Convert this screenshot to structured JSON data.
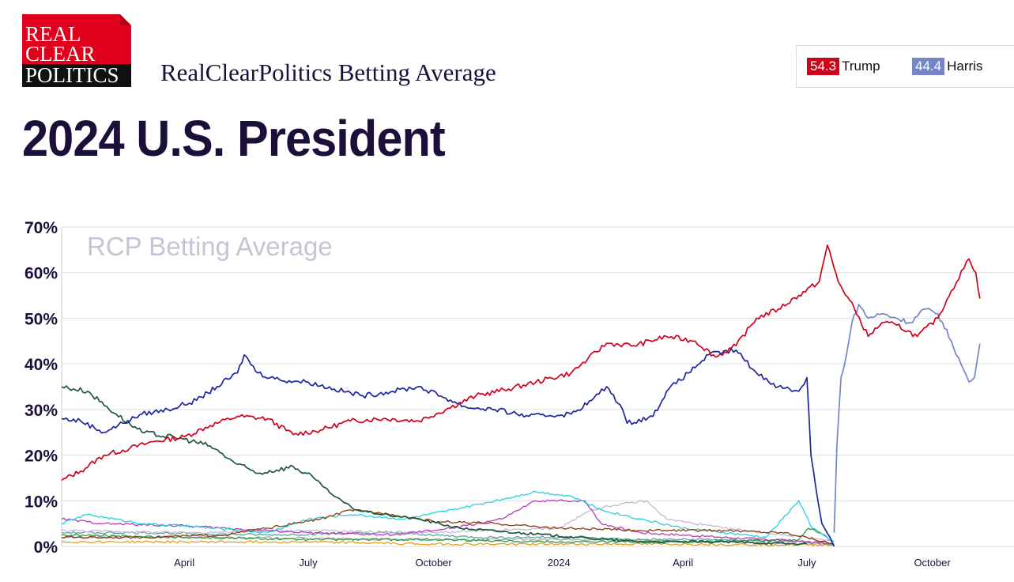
{
  "header": {
    "logo_line1": "REAL",
    "logo_line2": "CLEAR",
    "logo_line3": "POLITICS",
    "subtitle": "RealClearPolitics Betting Average",
    "title": "2024 U.S. President"
  },
  "legend": {
    "items": [
      {
        "value": "54.3",
        "name": "Trump",
        "color": "#d0021b"
      },
      {
        "value": "44.4",
        "name": "Harris",
        "color": "#7585c9"
      }
    ]
  },
  "chart_data": {
    "type": "line",
    "watermark": "RCP Betting Average",
    "y_ticks": [
      "0%",
      "10%",
      "20%",
      "30%",
      "40%",
      "50%",
      "60%",
      "70%"
    ],
    "x_ticks": [
      "April",
      "July",
      "October",
      "2024",
      "April",
      "July",
      "October"
    ],
    "ylim": [
      0,
      70
    ],
    "x_start": "2023-01-01",
    "x_end": "2024-11-30",
    "x_tick_dates": [
      "2023-04-01",
      "2023-07-01",
      "2023-10-01",
      "2024-01-01",
      "2024-04-01",
      "2024-07-01",
      "2024-10-01"
    ],
    "grid": true,
    "series": [
      {
        "name": "Trump",
        "color": "#d0021b",
        "points": [
          [
            "2023-01-01",
            14.5
          ],
          [
            "2023-01-15",
            16.5
          ],
          [
            "2023-02-01",
            20
          ],
          [
            "2023-02-20",
            21.5
          ],
          [
            "2023-03-10",
            23
          ],
          [
            "2023-04-01",
            24
          ],
          [
            "2023-04-20",
            26.5
          ],
          [
            "2023-05-10",
            28.5
          ],
          [
            "2023-06-01",
            28
          ],
          [
            "2023-06-20",
            24.5
          ],
          [
            "2023-07-10",
            25.5
          ],
          [
            "2023-08-01",
            27.5
          ],
          [
            "2023-08-25",
            28
          ],
          [
            "2023-09-20",
            27.5
          ],
          [
            "2023-10-10",
            30
          ],
          [
            "2023-11-01",
            33
          ],
          [
            "2023-11-25",
            34.5
          ],
          [
            "2023-12-15",
            36
          ],
          [
            "2024-01-10",
            38
          ],
          [
            "2024-01-22",
            41
          ],
          [
            "2024-02-05",
            44.5
          ],
          [
            "2024-02-25",
            44
          ],
          [
            "2024-03-20",
            46
          ],
          [
            "2024-04-10",
            45
          ],
          [
            "2024-04-25",
            41.5
          ],
          [
            "2024-05-10",
            44
          ],
          [
            "2024-05-25",
            50
          ],
          [
            "2024-06-10",
            52
          ],
          [
            "2024-06-25",
            55
          ],
          [
            "2024-07-10",
            58
          ],
          [
            "2024-07-16",
            66
          ],
          [
            "2024-07-24",
            58
          ],
          [
            "2024-08-05",
            52
          ],
          [
            "2024-08-15",
            46
          ],
          [
            "2024-08-25",
            49
          ],
          [
            "2024-09-05",
            48.5
          ],
          [
            "2024-09-20",
            46
          ],
          [
            "2024-10-05",
            50
          ],
          [
            "2024-10-15",
            56
          ],
          [
            "2024-10-28",
            63
          ],
          [
            "2024-11-02",
            60
          ],
          [
            "2024-11-05",
            54.3
          ]
        ]
      },
      {
        "name": "Harris",
        "color": "#7585c9",
        "points": [
          [
            "2024-07-21",
            3
          ],
          [
            "2024-07-23",
            22
          ],
          [
            "2024-07-26",
            37
          ],
          [
            "2024-07-30",
            42
          ],
          [
            "2024-08-03",
            49
          ],
          [
            "2024-08-08",
            53
          ],
          [
            "2024-08-15",
            50
          ],
          [
            "2024-08-25",
            51
          ],
          [
            "2024-09-05",
            50
          ],
          [
            "2024-09-15",
            49
          ],
          [
            "2024-09-25",
            52
          ],
          [
            "2024-10-05",
            51
          ],
          [
            "2024-10-15",
            45
          ],
          [
            "2024-10-22",
            40
          ],
          [
            "2024-10-28",
            36
          ],
          [
            "2024-11-01",
            37
          ],
          [
            "2024-11-05",
            44.4
          ]
        ]
      },
      {
        "name": "",
        "color": "#1f24a0",
        "points": [
          [
            "2023-01-01",
            28
          ],
          [
            "2023-01-15",
            27.5
          ],
          [
            "2023-02-01",
            25
          ],
          [
            "2023-02-15",
            27
          ],
          [
            "2023-03-01",
            29
          ],
          [
            "2023-03-20",
            30
          ],
          [
            "2023-04-10",
            32
          ],
          [
            "2023-04-25",
            35
          ],
          [
            "2023-05-10",
            38
          ],
          [
            "2023-05-15",
            42
          ],
          [
            "2023-05-25",
            38
          ],
          [
            "2023-06-10",
            36.5
          ],
          [
            "2023-07-01",
            36
          ],
          [
            "2023-07-20",
            34.5
          ],
          [
            "2023-08-10",
            33
          ],
          [
            "2023-09-01",
            34
          ],
          [
            "2023-09-20",
            35
          ],
          [
            "2023-10-10",
            32.5
          ],
          [
            "2023-10-25",
            30.5
          ],
          [
            "2023-11-15",
            30
          ],
          [
            "2023-12-10",
            28.5
          ],
          [
            "2024-01-10",
            29
          ],
          [
            "2024-01-25",
            32
          ],
          [
            "2024-02-05",
            35
          ],
          [
            "2024-02-15",
            31
          ],
          [
            "2024-02-20",
            27
          ],
          [
            "2024-03-10",
            28.5
          ],
          [
            "2024-03-20",
            34
          ],
          [
            "2024-04-05",
            38
          ],
          [
            "2024-04-20",
            42
          ],
          [
            "2024-05-10",
            43
          ],
          [
            "2024-05-25",
            38
          ],
          [
            "2024-06-10",
            35
          ],
          [
            "2024-06-25",
            34
          ],
          [
            "2024-07-01",
            37
          ],
          [
            "2024-07-04",
            20
          ],
          [
            "2024-07-08",
            12
          ],
          [
            "2024-07-12",
            5
          ],
          [
            "2024-07-18",
            2
          ],
          [
            "2024-07-21",
            0
          ]
        ]
      },
      {
        "name": "",
        "color": "#1d5a3a",
        "points": [
          [
            "2023-01-01",
            35
          ],
          [
            "2023-01-20",
            34
          ],
          [
            "2023-02-10",
            29
          ],
          [
            "2023-03-01",
            25
          ],
          [
            "2023-04-01",
            23.5
          ],
          [
            "2023-04-20",
            22
          ],
          [
            "2023-05-10",
            18
          ],
          [
            "2023-05-25",
            16
          ],
          [
            "2023-06-20",
            17.5
          ],
          [
            "2023-07-05",
            15
          ],
          [
            "2023-07-20",
            11
          ],
          [
            "2023-08-05",
            8
          ],
          [
            "2023-08-25",
            7
          ],
          [
            "2023-09-20",
            6
          ],
          [
            "2023-10-20",
            4
          ],
          [
            "2023-12-01",
            3
          ],
          [
            "2024-01-15",
            2
          ],
          [
            "2024-03-01",
            1
          ],
          [
            "2024-05-01",
            1
          ],
          [
            "2024-07-01",
            0.5
          ]
        ]
      },
      {
        "name": "",
        "color": "#8b3a0e",
        "points": [
          [
            "2023-01-01",
            2
          ],
          [
            "2023-03-01",
            2
          ],
          [
            "2023-05-01",
            2.5
          ],
          [
            "2023-06-01",
            4
          ],
          [
            "2023-07-10",
            6
          ],
          [
            "2023-08-01",
            8
          ],
          [
            "2023-09-01",
            7
          ],
          [
            "2023-10-01",
            5.5
          ],
          [
            "2023-11-15",
            5
          ],
          [
            "2024-01-01",
            4
          ],
          [
            "2024-03-01",
            3.5
          ],
          [
            "2024-05-01",
            3.5
          ],
          [
            "2024-06-15",
            3
          ],
          [
            "2024-07-01",
            2
          ],
          [
            "2024-07-21",
            0.5
          ]
        ]
      },
      {
        "name": "",
        "color": "#22d3e0",
        "points": [
          [
            "2023-01-01",
            5
          ],
          [
            "2023-01-20",
            7
          ],
          [
            "2023-03-01",
            5
          ],
          [
            "2023-04-01",
            4.5
          ],
          [
            "2023-06-01",
            3
          ],
          [
            "2023-07-01",
            6
          ],
          [
            "2023-08-01",
            7
          ],
          [
            "2023-09-10",
            6
          ],
          [
            "2023-10-15",
            8
          ],
          [
            "2023-11-15",
            10
          ],
          [
            "2023-12-15",
            12
          ],
          [
            "2024-01-10",
            11
          ],
          [
            "2024-02-01",
            8
          ],
          [
            "2024-03-01",
            6
          ],
          [
            "2024-04-01",
            4
          ],
          [
            "2024-06-01",
            2
          ],
          [
            "2024-06-25",
            10
          ],
          [
            "2024-07-05",
            4
          ],
          [
            "2024-07-21",
            1
          ]
        ]
      },
      {
        "name": "",
        "color": "#b83cb8",
        "points": [
          [
            "2023-01-01",
            6
          ],
          [
            "2023-02-01",
            5
          ],
          [
            "2023-04-01",
            4.5
          ],
          [
            "2023-07-01",
            3
          ],
          [
            "2023-09-01",
            2.5
          ],
          [
            "2023-10-15",
            4
          ],
          [
            "2023-11-20",
            6
          ],
          [
            "2023-12-15",
            10
          ],
          [
            "2024-01-20",
            10
          ],
          [
            "2024-02-01",
            5
          ],
          [
            "2024-03-01",
            3
          ],
          [
            "2024-05-01",
            2
          ],
          [
            "2024-07-01",
            1
          ],
          [
            "2024-07-21",
            0.5
          ]
        ]
      },
      {
        "name": "",
        "color": "#c2b8d8",
        "points": [
          [
            "2023-01-01",
            3.5
          ],
          [
            "2023-04-01",
            3
          ],
          [
            "2023-07-01",
            3.5
          ],
          [
            "2023-10-01",
            3
          ],
          [
            "2024-01-01",
            4
          ],
          [
            "2024-01-25",
            8
          ],
          [
            "2024-02-10",
            9
          ],
          [
            "2024-03-05",
            10
          ],
          [
            "2024-03-20",
            6
          ],
          [
            "2024-05-01",
            4
          ],
          [
            "2024-07-01",
            2
          ],
          [
            "2024-07-21",
            1
          ]
        ]
      },
      {
        "name": "",
        "color": "#2f9a3f",
        "points": [
          [
            "2023-01-01",
            2.5
          ],
          [
            "2023-04-01",
            2
          ],
          [
            "2023-07-01",
            1.5
          ],
          [
            "2023-10-01",
            1.5
          ],
          [
            "2024-01-01",
            1
          ],
          [
            "2024-04-01",
            1
          ],
          [
            "2024-06-25",
            1.5
          ],
          [
            "2024-07-02",
            4
          ],
          [
            "2024-07-10",
            3
          ],
          [
            "2024-07-21",
            1
          ]
        ]
      },
      {
        "name": "",
        "color": "#e0a020",
        "points": [
          [
            "2023-01-01",
            1
          ],
          [
            "2023-04-01",
            1
          ],
          [
            "2023-07-01",
            1
          ],
          [
            "2023-10-01",
            0.5
          ],
          [
            "2024-01-01",
            0.5
          ],
          [
            "2024-04-01",
            0.5
          ],
          [
            "2024-07-21",
            0.3
          ]
        ]
      },
      {
        "name": "",
        "color": "#5fa0a0",
        "points": [
          [
            "2023-01-01",
            3
          ],
          [
            "2023-03-01",
            3
          ],
          [
            "2023-06-01",
            2.5
          ],
          [
            "2023-09-01",
            3
          ],
          [
            "2023-11-01",
            2
          ],
          [
            "2024-01-01",
            2
          ],
          [
            "2024-03-01",
            1.5
          ],
          [
            "2024-05-01",
            1.5
          ],
          [
            "2024-07-01",
            1
          ],
          [
            "2024-07-21",
            0.5
          ]
        ]
      },
      {
        "name": "",
        "color": "#a8a8a8",
        "points": [
          [
            "2023-01-01",
            2
          ],
          [
            "2023-05-01",
            2
          ],
          [
            "2023-09-01",
            1.5
          ],
          [
            "2024-01-01",
            1.5
          ],
          [
            "2024-05-01",
            1
          ],
          [
            "2024-07-21",
            0.5
          ]
        ]
      }
    ]
  }
}
